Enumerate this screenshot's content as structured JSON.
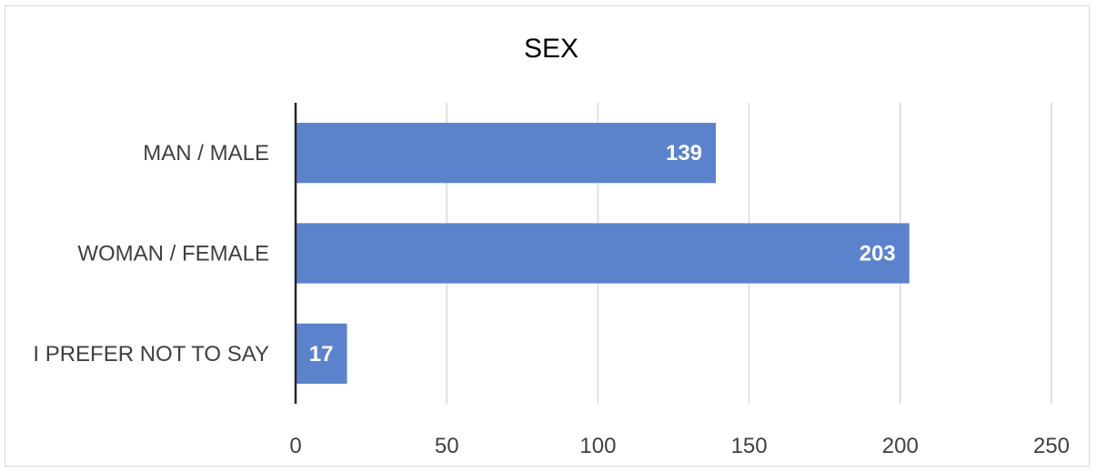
{
  "chart_data": {
    "type": "bar",
    "orientation": "horizontal",
    "title": "SEX",
    "categories": [
      "MAN / MALE",
      "WOMAN / FEMALE",
      "I PREFER NOT TO SAY"
    ],
    "values": [
      139,
      203,
      17
    ],
    "xlim": [
      0,
      250
    ],
    "xticks": [
      0,
      50,
      100,
      150,
      200,
      250
    ],
    "xlabel": "",
    "ylabel": "",
    "grid": "vertical",
    "data_labels": true,
    "legend": "none",
    "colors": {
      "bar": "#5b83cc",
      "grid": "#d9d9d9",
      "axis": "#262626",
      "label_text": "#404040",
      "value_text": "#ffffff"
    }
  }
}
